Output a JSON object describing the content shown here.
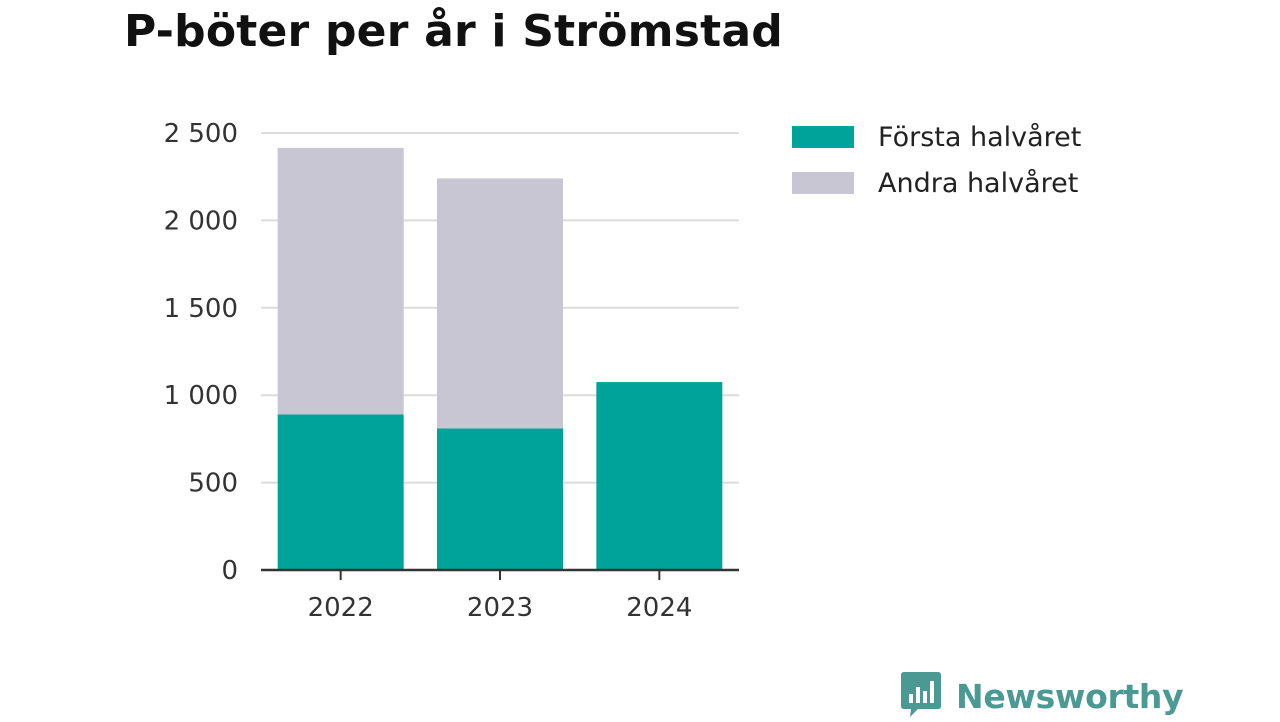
{
  "title": "P-böter per år i Strömstad",
  "brand": {
    "name": "Newsworthy",
    "color": "#4a9a93",
    "icon": "bar-chart-speech-bubble-icon"
  },
  "colors": {
    "first": "#00a399",
    "second": "#c8c6d2",
    "grid": "#dcdcdc",
    "axis": "#333333"
  },
  "legend": [
    {
      "label": "Första halvåret",
      "color": "#00a399"
    },
    {
      "label": "Andra halvåret",
      "color": "#c8c6d2"
    }
  ],
  "chart_data": {
    "type": "bar",
    "stacked": true,
    "title": "P-böter per år i Strömstad",
    "categories": [
      "2022",
      "2023",
      "2024"
    ],
    "series": [
      {
        "name": "Första halvåret",
        "values": [
          890,
          810,
          1075
        ]
      },
      {
        "name": "Andra halvåret",
        "values": [
          1525,
          1430,
          0
        ]
      }
    ],
    "ylim": [
      0,
      2500
    ],
    "yticks": [
      0,
      500,
      1000,
      1500,
      2000,
      2500
    ],
    "ytick_labels": [
      "0",
      "500",
      "1 000",
      "1 500",
      "2 000",
      "2 500"
    ],
    "grid": true,
    "legend_position": "top-right"
  }
}
